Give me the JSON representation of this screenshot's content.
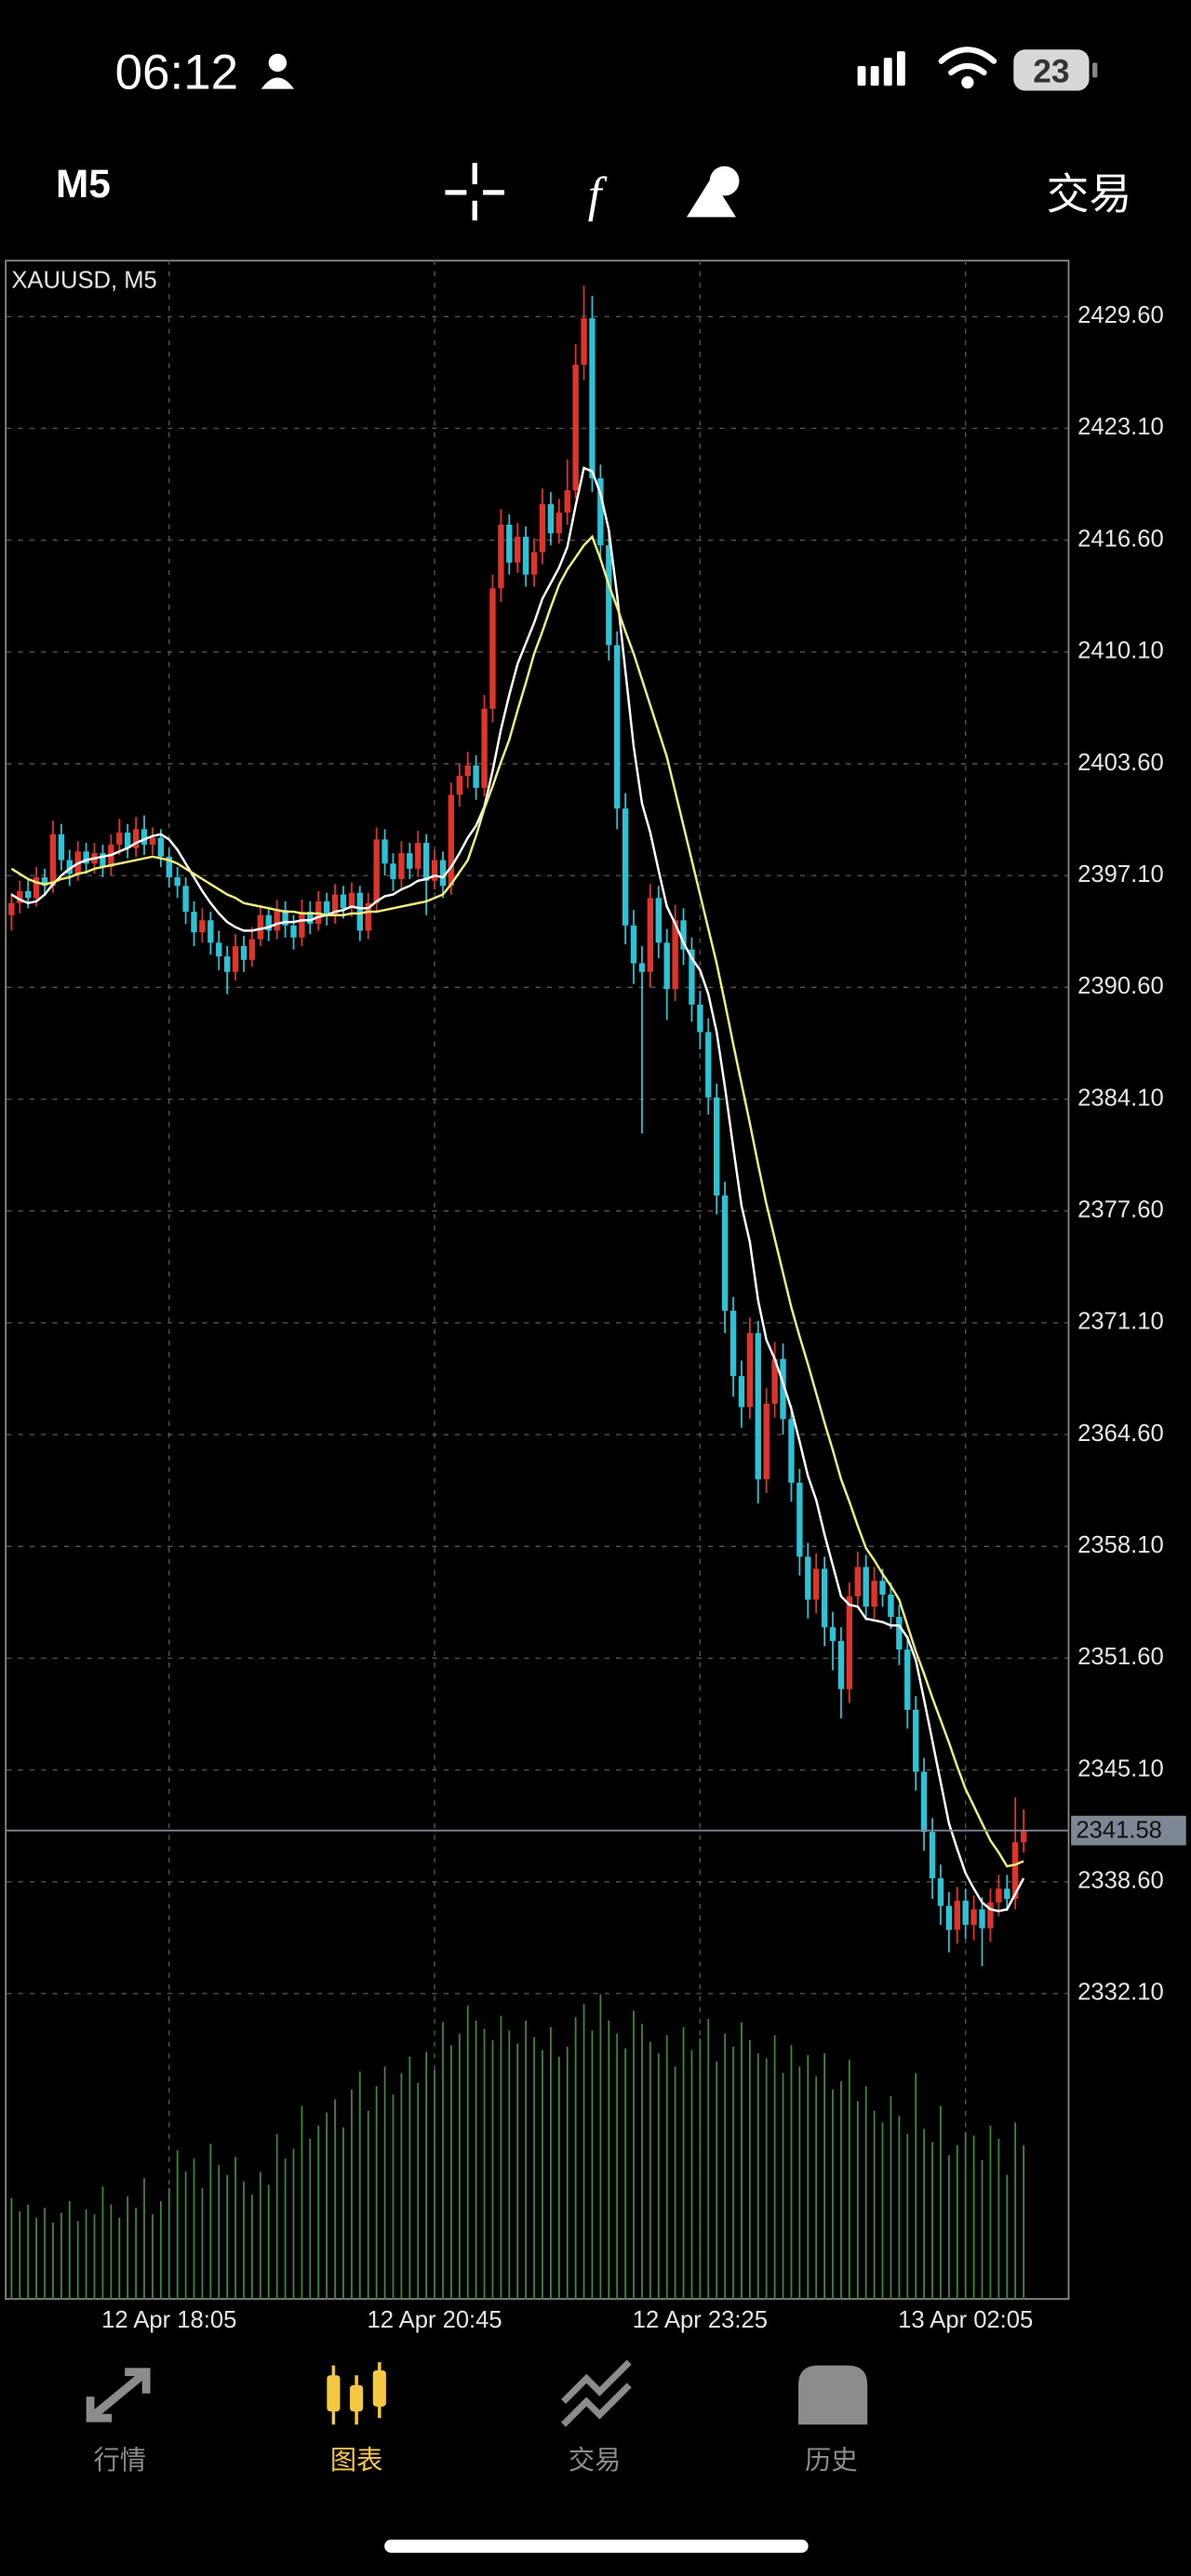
{
  "status_bar": {
    "time": "06:12",
    "battery": "23"
  },
  "toolbar": {
    "timeframe": "M5",
    "trade": "交易"
  },
  "tab_bar": {
    "tabs": [
      "行情",
      "图表",
      "交易",
      "历史"
    ],
    "active": 1
  },
  "chart_data": {
    "type": "candlestick",
    "title": "XAUUSD, M5",
    "categories": [
      null,
      null,
      null,
      null,
      null,
      null,
      null,
      null,
      null,
      null,
      null,
      null,
      null,
      null,
      null,
      null,
      null,
      null,
      null,
      "12 Apr 18:05",
      null,
      null,
      null,
      null,
      null,
      null,
      null,
      null,
      null,
      null,
      null,
      null,
      null,
      null,
      null,
      null,
      null,
      null,
      null,
      null,
      null,
      null,
      null,
      null,
      null,
      null,
      null,
      null,
      null,
      null,
      null,
      "12 Apr 20:45",
      null,
      null,
      null,
      null,
      null,
      null,
      null,
      null,
      null,
      null,
      null,
      null,
      null,
      null,
      null,
      null,
      null,
      null,
      null,
      null,
      null,
      null,
      null,
      null,
      null,
      null,
      null,
      null,
      null,
      null,
      null,
      "12 Apr 23:25",
      null,
      null,
      null,
      null,
      null,
      null,
      null,
      null,
      null,
      null,
      null,
      null,
      null,
      null,
      null,
      null,
      null,
      null,
      null,
      null,
      null,
      null,
      null,
      null,
      null,
      null,
      null,
      null,
      null,
      null,
      null,
      "13 Apr 02:05",
      null,
      null,
      null,
      null,
      null,
      null,
      null
    ],
    "open": [
      2394.8,
      2395.5,
      2396.2,
      2395.8,
      2397.0,
      2396.5,
      2399.5,
      2398.0,
      2397.2,
      2398.5,
      2397.8,
      2398.4,
      2397.6,
      2398.9,
      2399.6,
      2398.7,
      2399.8,
      2398.9,
      2399.3,
      2398.2,
      2397.0,
      2396.5,
      2395.0,
      2393.8,
      2394.5,
      2393.2,
      2392.4,
      2391.5,
      2393.0,
      2392.2,
      2393.4,
      2394.8,
      2393.9,
      2395.1,
      2394.2,
      2393.5,
      2395.0,
      2394.3,
      2395.6,
      2394.8,
      2396.0,
      2395.2,
      2396.1,
      2393.9,
      2395.5,
      2399.2,
      2397.8,
      2396.9,
      2398.4,
      2397.5,
      2399.0,
      2396.8,
      2398.0,
      2396.5,
      2401.8,
      2402.9,
      2403.5,
      2402.2,
      2406.8,
      2413.8,
      2417.5,
      2415.3,
      2416.8,
      2414.6,
      2415.9,
      2418.7,
      2417.0,
      2418.2,
      2419.5,
      2426.8,
      2429.5,
      2420.2,
      2416.3,
      2410.5,
      2401.0,
      2394.2,
      2392.0,
      2391.5,
      2395.8,
      2393.2,
      2390.5,
      2394.5,
      2392.8,
      2389.6,
      2388.0,
      2384.2,
      2378.5,
      2371.8,
      2368.0,
      2366.2,
      2370.5,
      2362.0,
      2366.4,
      2369.0,
      2365.5,
      2361.8,
      2357.5,
      2355.0,
      2356.8,
      2353.4,
      2352.6,
      2349.8,
      2355.2,
      2356.9,
      2354.6,
      2356.1,
      2355.3,
      2354.0,
      2352.1,
      2348.6,
      2345.0,
      2341.5,
      2338.8,
      2337.2,
      2335.8,
      2337.5,
      2336.1,
      2337.0,
      2335.9,
      2337.4,
      2338.2,
      2337.6,
      2340.9
    ],
    "high": [
      2396.1,
      2396.8,
      2396.9,
      2397.6,
      2397.5,
      2400.3,
      2400.1,
      2398.6,
      2399.1,
      2399.0,
      2399.0,
      2398.9,
      2399.5,
      2400.4,
      2400.1,
      2400.5,
      2400.6,
      2399.9,
      2399.8,
      2398.7,
      2397.6,
      2397.0,
      2395.6,
      2395.2,
      2395.0,
      2393.9,
      2393.0,
      2393.7,
      2393.6,
      2394.1,
      2395.4,
      2395.3,
      2395.7,
      2395.6,
      2394.8,
      2395.7,
      2395.6,
      2396.2,
      2396.1,
      2396.6,
      2396.5,
      2396.7,
      2396.5,
      2396.1,
      2399.9,
      2399.8,
      2398.4,
      2399.1,
      2399.0,
      2399.7,
      2399.5,
      2398.6,
      2398.5,
      2402.5,
      2403.6,
      2404.3,
      2404.1,
      2407.6,
      2414.6,
      2418.4,
      2418.1,
      2417.6,
      2417.4,
      2416.7,
      2419.6,
      2419.4,
      2419.0,
      2421.3,
      2428.0,
      2431.4,
      2430.8,
      2421.0,
      2417.2,
      2411.3,
      2401.9,
      2395.1,
      2393.0,
      2396.6,
      2396.5,
      2394.0,
      2395.4,
      2395.2,
      2393.5,
      2390.4,
      2388.8,
      2385.0,
      2379.3,
      2372.6,
      2368.9,
      2371.4,
      2371.2,
      2367.3,
      2370.0,
      2369.9,
      2366.3,
      2362.6,
      2358.3,
      2357.7,
      2357.5,
      2354.3,
      2353.4,
      2356.0,
      2357.8,
      2357.6,
      2356.9,
      2356.8,
      2356.0,
      2354.7,
      2352.9,
      2349.4,
      2345.8,
      2342.3,
      2339.6,
      2338.0,
      2338.3,
      2338.2,
      2337.8,
      2337.7,
      2338.2,
      2339.0,
      2339.0,
      2343.5,
      2342.8
    ],
    "low": [
      2393.9,
      2394.9,
      2395.2,
      2395.3,
      2395.9,
      2396.1,
      2397.4,
      2396.5,
      2396.8,
      2397.2,
      2397.2,
      2397.0,
      2397.1,
      2398.3,
      2398.1,
      2398.2,
      2398.3,
      2398.3,
      2397.6,
      2396.4,
      2395.8,
      2394.3,
      2393.0,
      2393.2,
      2392.5,
      2391.6,
      2390.2,
      2391.0,
      2391.5,
      2391.8,
      2393.0,
      2393.3,
      2393.4,
      2393.5,
      2392.8,
      2393.0,
      2393.7,
      2393.9,
      2394.2,
      2394.3,
      2394.6,
      2394.7,
      2393.3,
      2393.4,
      2395.0,
      2397.1,
      2396.2,
      2396.4,
      2396.9,
      2397.0,
      2394.8,
      2396.3,
      2395.8,
      2396.0,
      2401.1,
      2402.2,
      2401.5,
      2401.7,
      2406.0,
      2413.0,
      2414.6,
      2414.7,
      2413.9,
      2413.9,
      2415.2,
      2416.3,
      2416.4,
      2417.5,
      2419.0,
      2425.9,
      2419.4,
      2415.4,
      2409.6,
      2399.8,
      2393.1,
      2390.8,
      2382.1,
      2390.6,
      2392.3,
      2388.7,
      2389.8,
      2391.9,
      2388.6,
      2387.0,
      2383.2,
      2377.4,
      2370.5,
      2366.8,
      2365.0,
      2365.5,
      2360.6,
      2361.2,
      2365.6,
      2364.6,
      2360.7,
      2356.4,
      2353.9,
      2354.2,
      2352.3,
      2350.9,
      2348.1,
      2349.0,
      2354.5,
      2353.8,
      2353.9,
      2354.6,
      2353.3,
      2351.2,
      2347.5,
      2343.9,
      2340.4,
      2337.6,
      2336.1,
      2334.5,
      2335.0,
      2335.3,
      2335.2,
      2333.7,
      2335.1,
      2336.6,
      2336.9,
      2337.0,
      2340.3
    ],
    "close": [
      2395.5,
      2396.2,
      2395.8,
      2397.0,
      2396.5,
      2399.5,
      2398.0,
      2397.2,
      2398.5,
      2397.8,
      2398.4,
      2397.6,
      2398.9,
      2399.6,
      2398.7,
      2399.8,
      2398.9,
      2399.3,
      2398.2,
      2397.0,
      2396.5,
      2395.0,
      2393.8,
      2394.5,
      2393.2,
      2392.4,
      2391.5,
      2393.0,
      2392.2,
      2393.4,
      2394.8,
      2393.9,
      2395.1,
      2394.2,
      2393.5,
      2395.0,
      2394.3,
      2395.6,
      2394.8,
      2396.0,
      2395.2,
      2396.1,
      2393.9,
      2395.5,
      2399.2,
      2397.8,
      2396.9,
      2398.4,
      2397.5,
      2399.0,
      2396.8,
      2398.0,
      2396.5,
      2401.8,
      2402.9,
      2403.5,
      2402.2,
      2406.8,
      2413.8,
      2417.5,
      2415.3,
      2416.8,
      2414.6,
      2415.9,
      2418.7,
      2417.0,
      2418.2,
      2419.5,
      2426.8,
      2429.5,
      2420.2,
      2416.3,
      2410.5,
      2401.0,
      2394.2,
      2392.0,
      2391.5,
      2395.8,
      2393.2,
      2390.5,
      2394.5,
      2392.8,
      2389.6,
      2388.0,
      2384.2,
      2378.5,
      2371.8,
      2368.0,
      2366.2,
      2370.5,
      2362.0,
      2366.4,
      2369.0,
      2365.5,
      2361.8,
      2357.5,
      2355.0,
      2356.8,
      2353.4,
      2352.6,
      2349.8,
      2355.2,
      2356.9,
      2354.6,
      2356.1,
      2355.3,
      2354.0,
      2352.1,
      2348.6,
      2345.0,
      2341.5,
      2338.8,
      2337.2,
      2335.8,
      2337.5,
      2336.1,
      2337.0,
      2335.9,
      2337.4,
      2338.2,
      2337.6,
      2340.9,
      2341.58
    ],
    "volume": [
      620,
      540,
      580,
      500,
      560,
      470,
      530,
      600,
      480,
      550,
      520,
      690,
      580,
      500,
      630,
      560,
      740,
      520,
      600,
      680,
      910,
      780,
      860,
      680,
      950,
      820,
      760,
      870,
      720,
      640,
      780,
      700,
      1010,
      860,
      920,
      1180,
      980,
      1060,
      1140,
      1220,
      1050,
      1280,
      1390,
      1150,
      1300,
      1420,
      1250,
      1380,
      1480,
      1320,
      1510,
      1400,
      1690,
      1550,
      1620,
      1790,
      1700,
      1650,
      1580,
      1730,
      1640,
      1560,
      1700,
      1600,
      1520,
      1660,
      1480,
      1540,
      1720,
      1800,
      1640,
      1860,
      1700,
      1620,
      1530,
      1760,
      1680,
      1570,
      1500,
      1610,
      1420,
      1660,
      1520,
      1590,
      1710,
      1450,
      1620,
      1540,
      1690,
      1580,
      1500,
      1470,
      1610,
      1380,
      1550,
      1420,
      1490,
      1360,
      1500,
      1280,
      1330,
      1460,
      1210,
      1300,
      1150,
      1080,
      1240,
      1120,
      1010,
      1380,
      1040,
      960,
      1180,
      880,
      940,
      1020,
      1000,
      850,
      1060,
      980,
      760,
      1080,
      940
    ],
    "volume_lim": [
      0,
      2000
    ],
    "ma_series": [
      {
        "color": "#ffffff",
        "values": [
          2396.0,
          2395.7,
          2395.5,
          2395.6,
          2396.0,
          2396.6,
          2397.1,
          2397.5,
          2397.8,
          2398.0,
          2398.1,
          2398.2,
          2398.3,
          2398.5,
          2398.7,
          2399.0,
          2399.2,
          2399.4,
          2399.5,
          2399.2,
          2398.6,
          2397.8,
          2397.0,
          2396.2,
          2395.5,
          2394.9,
          2394.4,
          2394.1,
          2393.9,
          2393.9,
          2394.0,
          2394.1,
          2394.3,
          2394.4,
          2394.4,
          2394.5,
          2394.5,
          2394.7,
          2394.8,
          2395.0,
          2395.1,
          2395.3,
          2395.2,
          2395.2,
          2395.6,
          2395.9,
          2396.0,
          2396.3,
          2396.5,
          2396.8,
          2396.9,
          2397.1,
          2397.0,
          2397.6,
          2398.4,
          2399.3,
          2400.0,
          2401.1,
          2403.2,
          2405.6,
          2407.6,
          2409.4,
          2410.6,
          2411.8,
          2413.2,
          2414.1,
          2415.0,
          2416.2,
          2418.6,
          2420.8,
          2420.6,
          2419.3,
          2417.2,
          2413.4,
          2409.0,
          2404.6,
          2401.3,
          2399.6,
          2397.4,
          2395.3,
          2394.3,
          2393.2,
          2392.3,
          2391.6,
          2390.2,
          2388.0,
          2384.8,
          2381.3,
          2377.9,
          2375.8,
          2372.4,
          2370.1,
          2369.0,
          2367.6,
          2366.1,
          2364.2,
          2362.2,
          2360.8,
          2358.8,
          2357.0,
          2355.2,
          2354.7,
          2354.6,
          2353.9,
          2353.8,
          2353.7,
          2353.5,
          2353.5,
          2352.8,
          2351.5,
          2349.2,
          2346.8,
          2344.4,
          2342.0,
          2340.5,
          2339.1,
          2338.2,
          2337.4,
          2337.0,
          2336.9,
          2337.0,
          2337.9,
          2338.8
        ]
      },
      {
        "color": "#f2ee7c",
        "values": [
          2397.5,
          2397.2,
          2396.9,
          2396.7,
          2396.6,
          2396.7,
          2396.9,
          2397.0,
          2397.2,
          2397.3,
          2397.5,
          2397.6,
          2397.7,
          2397.8,
          2397.9,
          2398.0,
          2398.1,
          2398.2,
          2398.1,
          2398.0,
          2397.8,
          2397.5,
          2397.2,
          2396.9,
          2396.6,
          2396.3,
          2396.0,
          2395.8,
          2395.5,
          2395.4,
          2395.3,
          2395.2,
          2395.1,
          2395.0,
          2395.0,
          2394.9,
          2394.9,
          2394.9,
          2394.8,
          2394.8,
          2394.8,
          2394.9,
          2394.9,
          2395.0,
          2395.0,
          2395.1,
          2395.2,
          2395.3,
          2395.4,
          2395.5,
          2395.6,
          2395.8,
          2396.0,
          2396.6,
          2397.3,
          2398.0,
          2399.4,
          2401.0,
          2402.3,
          2403.7,
          2405.0,
          2406.7,
          2408.3,
          2410.0,
          2411.3,
          2412.7,
          2414.0,
          2414.9,
          2415.6,
          2416.3,
          2416.8,
          2415.5,
          2414.0,
          2412.7,
          2411.3,
          2410.0,
          2408.5,
          2407.0,
          2405.5,
          2404.0,
          2402.0,
          2400.0,
          2398.0,
          2396.0,
          2394.0,
          2392.0,
          2389.7,
          2387.3,
          2385.0,
          2382.7,
          2380.3,
          2378.0,
          2376.0,
          2374.0,
          2372.0,
          2370.3,
          2368.7,
          2367.0,
          2365.3,
          2363.7,
          2362.0,
          2360.7,
          2359.3,
          2358.0,
          2357.3,
          2356.5,
          2355.8,
          2355.0,
          2353.5,
          2352.0,
          2350.7,
          2349.3,
          2348.0,
          2346.7,
          2345.3,
          2344.0,
          2343.0,
          2342.0,
          2341.0,
          2340.3,
          2339.5,
          2339.6,
          2339.8
        ]
      }
    ],
    "up_color": "#e0342a",
    "down_color": "#2cc3d6",
    "volume_color": "#3f8a3a",
    "grid": true,
    "ylim": [
      2314.3,
      2432.9
    ],
    "yticks": [
      {
        "value": 2429.6,
        "label": "2429.60"
      },
      {
        "value": 2423.1,
        "label": "2423.10"
      },
      {
        "value": 2416.6,
        "label": "2416.60"
      },
      {
        "value": 2410.1,
        "label": "2410.10"
      },
      {
        "value": 2403.6,
        "label": "2403.60"
      },
      {
        "value": 2397.1,
        "label": "2397.10"
      },
      {
        "value": 2390.6,
        "label": "2390.60"
      },
      {
        "value": 2384.1,
        "label": "2384.10"
      },
      {
        "value": 2377.6,
        "label": "2377.60"
      },
      {
        "value": 2371.1,
        "label": "2371.10"
      },
      {
        "value": 2364.6,
        "label": "2364.60"
      },
      {
        "value": 2358.1,
        "label": "2358.10"
      },
      {
        "value": 2351.6,
        "label": "2351.60"
      },
      {
        "value": 2345.1,
        "label": "2345.10"
      },
      {
        "value": 2338.6,
        "label": "2338.60"
      },
      {
        "value": 2332.1,
        "label": "2332.10"
      }
    ]
  }
}
